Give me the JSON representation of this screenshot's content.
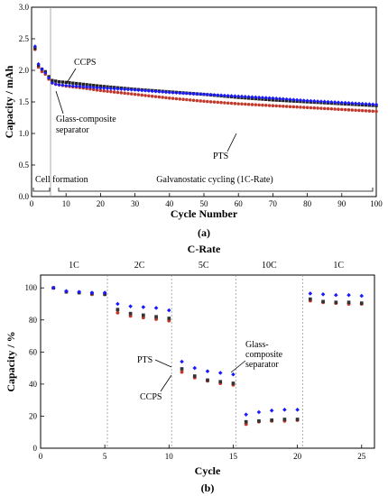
{
  "chart_data": [
    {
      "type": "scatter",
      "panel_label": "(a)",
      "xlabel": "Cycle Number",
      "ylabel": "Capacity / mAh",
      "xlim": [
        0,
        100
      ],
      "ylim": [
        0,
        3.0
      ],
      "xticks": [
        0,
        10,
        20,
        30,
        40,
        50,
        60,
        70,
        80,
        90,
        100
      ],
      "yticks": [
        0.0,
        0.5,
        1.0,
        1.5,
        2.0,
        2.5,
        3.0
      ],
      "grid": false,
      "vline_x": 5.5,
      "annotations": {
        "ccps": "CCPS",
        "glass_line1": "Glass-composite",
        "glass_line2": "separator",
        "pts": "PTS",
        "cell_formation": "Cell formation",
        "galvanostatic": "Galvanostatic cycling (1C-Rate)"
      },
      "series": [
        {
          "key": "ccps",
          "color": "#222222",
          "marker": "square",
          "x": [
            1,
            2,
            3,
            4,
            5,
            6,
            7,
            8,
            10,
            15,
            20,
            30,
            40,
            50,
            60,
            70,
            80,
            90,
            100
          ],
          "y": [
            2.35,
            2.08,
            2.02,
            1.98,
            1.9,
            1.84,
            1.83,
            1.82,
            1.81,
            1.78,
            1.75,
            1.7,
            1.66,
            1.62,
            1.57,
            1.53,
            1.5,
            1.47,
            1.44
          ]
        },
        {
          "key": "glass",
          "color": "#1a1aff",
          "marker": "diamond",
          "x": [
            1,
            2,
            3,
            4,
            5,
            6,
            7,
            8,
            10,
            15,
            20,
            30,
            40,
            50,
            60,
            70,
            80,
            90,
            100
          ],
          "y": [
            2.38,
            2.1,
            2.02,
            1.96,
            1.88,
            1.8,
            1.78,
            1.77,
            1.76,
            1.74,
            1.72,
            1.69,
            1.65,
            1.62,
            1.59,
            1.56,
            1.52,
            1.49,
            1.46
          ]
        },
        {
          "key": "pts",
          "color": "#c0392b",
          "marker": "circle",
          "x": [
            1,
            2,
            3,
            4,
            5,
            6,
            7,
            8,
            10,
            15,
            20,
            30,
            40,
            50,
            60,
            70,
            80,
            90,
            100
          ],
          "y": [
            2.33,
            2.05,
            1.98,
            1.94,
            1.86,
            1.8,
            1.78,
            1.77,
            1.75,
            1.72,
            1.68,
            1.62,
            1.56,
            1.51,
            1.47,
            1.44,
            1.41,
            1.38,
            1.35
          ]
        }
      ]
    },
    {
      "type": "scatter",
      "panel_label": "(b)",
      "title": "C-Rate",
      "xlabel": "Cycle",
      "ylabel": "Capacity / %",
      "xlim": [
        0,
        26
      ],
      "ylim": [
        0,
        108
      ],
      "xticks": [
        0,
        5,
        10,
        15,
        20,
        25
      ],
      "yticks": [
        0,
        20,
        40,
        60,
        80,
        100
      ],
      "grid": false,
      "vlines_x": [
        5.2,
        10.2,
        15.2,
        20.4
      ],
      "rate_labels": [
        {
          "label": "1C",
          "x": 2.6
        },
        {
          "label": "2C",
          "x": 7.7
        },
        {
          "label": "5C",
          "x": 12.7
        },
        {
          "label": "10C",
          "x": 17.8
        },
        {
          "label": "1C",
          "x": 23.2
        }
      ],
      "annotations": {
        "pts": "PTS",
        "ccps": "CCPS",
        "glass_line1": "Glass-",
        "glass_line2": "composite",
        "glass_line3": "separator"
      },
      "series": [
        {
          "key": "glass",
          "color": "#1a1aff",
          "marker": "diamond",
          "x": [
            1,
            2,
            3,
            4,
            5,
            6,
            7,
            8,
            9,
            10,
            11,
            12,
            13,
            14,
            15,
            16,
            17,
            18,
            19,
            20,
            21,
            22,
            23,
            24,
            25
          ],
          "y": [
            100,
            98,
            97.5,
            97,
            97,
            90,
            88.5,
            88,
            87.5,
            86,
            54,
            50,
            48,
            47,
            46,
            21,
            22.5,
            23.5,
            24,
            24,
            96.5,
            96,
            95.5,
            95.5,
            95
          ]
        },
        {
          "key": "ccps",
          "color": "#333333",
          "marker": "square",
          "x": [
            1,
            2,
            3,
            4,
            5,
            6,
            7,
            8,
            9,
            10,
            11,
            12,
            13,
            14,
            15,
            16,
            17,
            18,
            19,
            20,
            21,
            22,
            23,
            24,
            25
          ],
          "y": [
            100,
            97.5,
            97,
            96.5,
            96,
            86.5,
            84,
            83,
            82,
            81,
            49.5,
            45,
            42.5,
            41.5,
            40.5,
            16.5,
            17,
            17.5,
            18,
            18,
            93,
            91.5,
            91,
            91,
            90.5
          ]
        },
        {
          "key": "pts",
          "color": "#c0392b",
          "marker": "circle",
          "x": [
            1,
            2,
            3,
            4,
            5,
            6,
            7,
            8,
            9,
            10,
            11,
            12,
            13,
            14,
            15,
            16,
            17,
            18,
            19,
            20,
            21,
            22,
            23,
            24,
            25
          ],
          "y": [
            100,
            97.5,
            97,
            96,
            96,
            84.5,
            82.5,
            81.5,
            80.5,
            79.5,
            47.5,
            44,
            42,
            40.5,
            39.5,
            15,
            16.5,
            17,
            17,
            17.5,
            92,
            91,
            90.5,
            90,
            90
          ]
        }
      ]
    }
  ]
}
